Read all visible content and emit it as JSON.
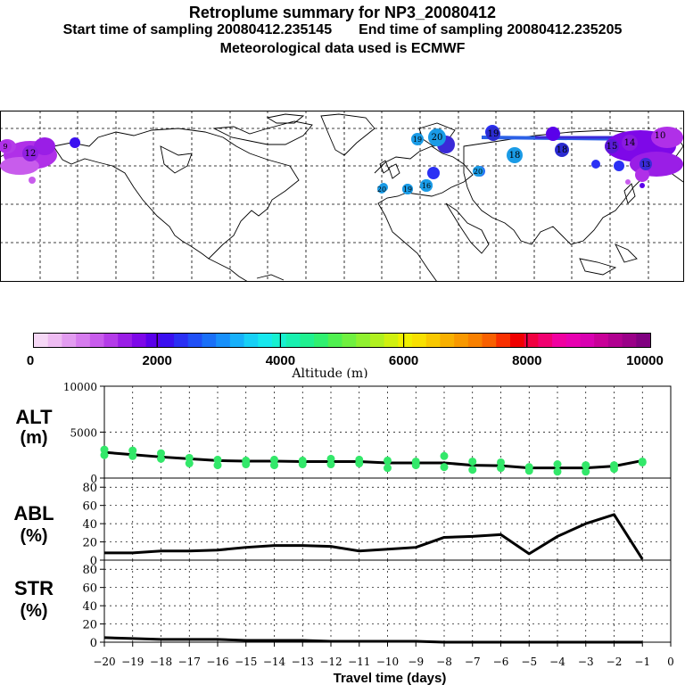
{
  "header": {
    "title": "Retroplume summary for NP3_20080412",
    "start_label": "Start time of sampling 20080412.235145",
    "end_label": "End time of sampling 20080412.235205",
    "met_label": "Meteorological data used is ECMWF"
  },
  "map": {
    "day_markers": [
      {
        "label": "19",
        "color": "#1a9be6"
      },
      {
        "label": "20",
        "color": "#1a9be6"
      },
      {
        "label": "19",
        "color": "#2b2bd0"
      },
      {
        "label": "18",
        "color": "#2b2bd0"
      },
      {
        "label": "20",
        "color": "#1a9be6"
      },
      {
        "label": "20",
        "color": "#1a9be6"
      },
      {
        "label": "19",
        "color": "#1a9be6"
      },
      {
        "label": "18",
        "color": "#1a9be6"
      },
      {
        "label": "16",
        "color": "#1a9be6"
      },
      {
        "label": "15",
        "color": "#5a1ad6"
      },
      {
        "label": "14",
        "color": "#8a1ae0"
      },
      {
        "label": "10",
        "color": "#b030e8"
      },
      {
        "label": "9",
        "color": "#b030e8"
      },
      {
        "label": "12",
        "color": "#9020e0"
      },
      {
        "label": "13",
        "color": "#3a2ad8"
      }
    ]
  },
  "colorbar": {
    "ticks": [
      "0",
      "2000",
      "4000",
      "6000",
      "8000",
      "10000"
    ],
    "label": "Altitude (m)",
    "colors": [
      "#f6d8f6",
      "#eebcf2",
      "#e29cf0",
      "#d67cee",
      "#c85cec",
      "#b43ce8",
      "#9a1ee6",
      "#7e08e8",
      "#5a00ea",
      "#3a10f0",
      "#2a30f4",
      "#2050f6",
      "#1a70f8",
      "#1890fa",
      "#18b0fa",
      "#18d0f6",
      "#18e8ee",
      "#18f0d0",
      "#18f0b0",
      "#20f090",
      "#30f070",
      "#50f050",
      "#70f040",
      "#90f030",
      "#b0f020",
      "#d0f010",
      "#f0f000",
      "#f8e000",
      "#f8c800",
      "#f8b000",
      "#f89800",
      "#f88000",
      "#f86000",
      "#f83000",
      "#f00000",
      "#f00040",
      "#f00070",
      "#f000a0",
      "#e800b0",
      "#d800b0",
      "#c80098",
      "#b00090",
      "#9a0088",
      "#800080"
    ]
  },
  "axes": {
    "alt": {
      "label1": "ALT",
      "label2": "(m)"
    },
    "abl": {
      "label1": "ABL",
      "label2": "(%)"
    },
    "str": {
      "label1": "STR",
      "label2": "(%)"
    },
    "xlabel": "Travel time (days)"
  },
  "chart_data": [
    {
      "type": "line",
      "title": "ALT (m)",
      "ylabel": "ALT (m)",
      "ylim": [
        0,
        10000
      ],
      "yticks": [
        0,
        5000,
        10000
      ],
      "x": [
        -20,
        -19,
        -18,
        -17,
        -16,
        -15,
        -14,
        -13,
        -12,
        -11,
        -10,
        -9,
        -8,
        -7,
        -6,
        -5,
        -4,
        -3,
        -2,
        -1
      ],
      "series": [
        {
          "name": "mean altitude",
          "values": [
            2800,
            2550,
            2300,
            2100,
            1900,
            1850,
            1850,
            1800,
            1800,
            1800,
            1650,
            1650,
            1650,
            1400,
            1350,
            1100,
            1100,
            1100,
            1300,
            1900
          ]
        },
        {
          "name": "cluster altitudes",
          "type": "scatter",
          "color": "#33e86a",
          "points": [
            [
              -20,
              3100
            ],
            [
              -20,
              2500
            ],
            [
              -19,
              3000
            ],
            [
              -19,
              2400
            ],
            [
              -18,
              2700
            ],
            [
              -18,
              2100
            ],
            [
              -17,
              2200
            ],
            [
              -17,
              1600
            ],
            [
              -16,
              2000
            ],
            [
              -16,
              1400
            ],
            [
              -15,
              1900
            ],
            [
              -15,
              1500
            ],
            [
              -14,
              2000
            ],
            [
              -14,
              1400
            ],
            [
              -13,
              1900
            ],
            [
              -13,
              1500
            ],
            [
              -12,
              2100
            ],
            [
              -12,
              1500
            ],
            [
              -11,
              2000
            ],
            [
              -11,
              1600
            ],
            [
              -10,
              1900
            ],
            [
              -10,
              1100
            ],
            [
              -9,
              1800
            ],
            [
              -9,
              1400
            ],
            [
              -8,
              2400
            ],
            [
              -8,
              1200
            ],
            [
              -7,
              1800
            ],
            [
              -7,
              900
            ],
            [
              -6,
              1700
            ],
            [
              -6,
              1100
            ],
            [
              -5,
              1200
            ],
            [
              -5,
              800
            ],
            [
              -4,
              1500
            ],
            [
              -4,
              700
            ],
            [
              -3,
              1400
            ],
            [
              -3,
              700
            ],
            [
              -2,
              1400
            ],
            [
              -2,
              1000
            ],
            [
              -1,
              1800
            ],
            [
              -1,
              1700
            ]
          ]
        }
      ]
    },
    {
      "type": "line",
      "title": "ABL (%)",
      "ylabel": "ABL (%)",
      "ylim": [
        0,
        90
      ],
      "yticks": [
        0,
        20,
        40,
        60,
        80
      ],
      "x": [
        -20,
        -19,
        -18,
        -17,
        -16,
        -15,
        -14,
        -13,
        -12,
        -11,
        -10,
        -9,
        -8,
        -7,
        -6,
        -5,
        -4,
        -3,
        -2,
        -1
      ],
      "series": [
        {
          "name": "ABL",
          "values": [
            8,
            8,
            10,
            10,
            11,
            14,
            16,
            16,
            15,
            10,
            12,
            14,
            25,
            26,
            28,
            7,
            26,
            40,
            50,
            1
          ]
        }
      ]
    },
    {
      "type": "line",
      "title": "STR (%)",
      "xlabel": "Travel time (days)",
      "ylabel": "STR (%)",
      "ylim": [
        0,
        90
      ],
      "yticks": [
        0,
        20,
        40,
        60,
        80
      ],
      "xticks": [
        -20,
        -19,
        -18,
        -17,
        -16,
        -15,
        -14,
        -13,
        -12,
        -11,
        -10,
        -9,
        -8,
        -7,
        -6,
        -5,
        -4,
        -3,
        -2,
        -1,
        0
      ],
      "x": [
        -20,
        -19,
        -18,
        -17,
        -16,
        -15,
        -14,
        -13,
        -12,
        -11,
        -10,
        -9,
        -8,
        -7,
        -6,
        -5,
        -4,
        -3,
        -2,
        -1
      ],
      "series": [
        {
          "name": "STR",
          "values": [
            5,
            4,
            3,
            3,
            3,
            2,
            2,
            2,
            1,
            1,
            1,
            1,
            0,
            0,
            0,
            0,
            0,
            0,
            0,
            0
          ]
        }
      ]
    }
  ]
}
